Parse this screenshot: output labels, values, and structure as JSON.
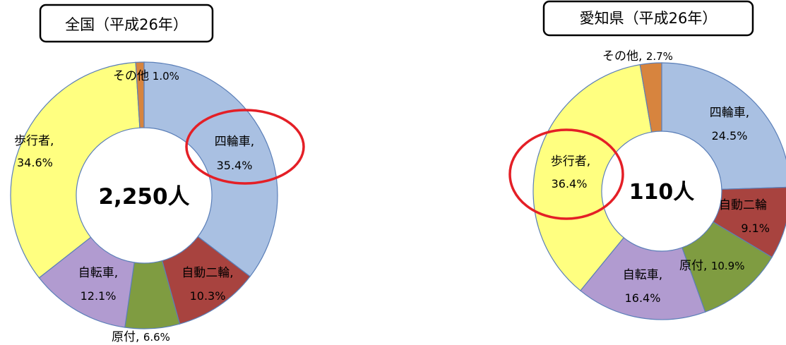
{
  "chart_data": [
    {
      "type": "donut",
      "title": "全国（平成26年）",
      "center_label": "2,250人",
      "slices": [
        {
          "name": "四輪車",
          "value_label": "35.4%",
          "value": 35.4,
          "color": "#a9c0e2"
        },
        {
          "name": "自動二輪",
          "value_label": "10.3%",
          "value": 10.3,
          "color": "#a8433f"
        },
        {
          "name": "原付",
          "value_label": "6.6%",
          "value": 6.6,
          "color": "#7f9c41"
        },
        {
          "name": "自転車",
          "value_label": "12.1%",
          "value": 12.1,
          "color": "#b19bd0"
        },
        {
          "name": "歩行者",
          "value_label": "34.6%",
          "value": 34.6,
          "color": "#ffff80"
        },
        {
          "name": "その他",
          "value_label": "1.0%",
          "value": 1.0,
          "color": "#d7843e"
        }
      ]
    },
    {
      "type": "donut",
      "title": "愛知県（平成26年）",
      "center_label": "110人",
      "slices": [
        {
          "name": "四輪車",
          "value_label": "24.5%",
          "value": 24.5,
          "color": "#a9c0e2"
        },
        {
          "name": "自動二輪",
          "value_label": "9.1%",
          "value": 9.1,
          "color": "#a8433f"
        },
        {
          "name": "原付",
          "value_label": "10.9%",
          "value": 10.9,
          "color": "#7f9c41"
        },
        {
          "name": "自転車",
          "value_label": "16.4%",
          "value": 16.4,
          "color": "#b19bd0"
        },
        {
          "name": "歩行者",
          "value_label": "36.4%",
          "value": 36.4,
          "color": "#ffff80"
        },
        {
          "name": "その他",
          "value_label": "2.7%",
          "value": 2.7,
          "color": "#d7843e"
        }
      ]
    }
  ]
}
